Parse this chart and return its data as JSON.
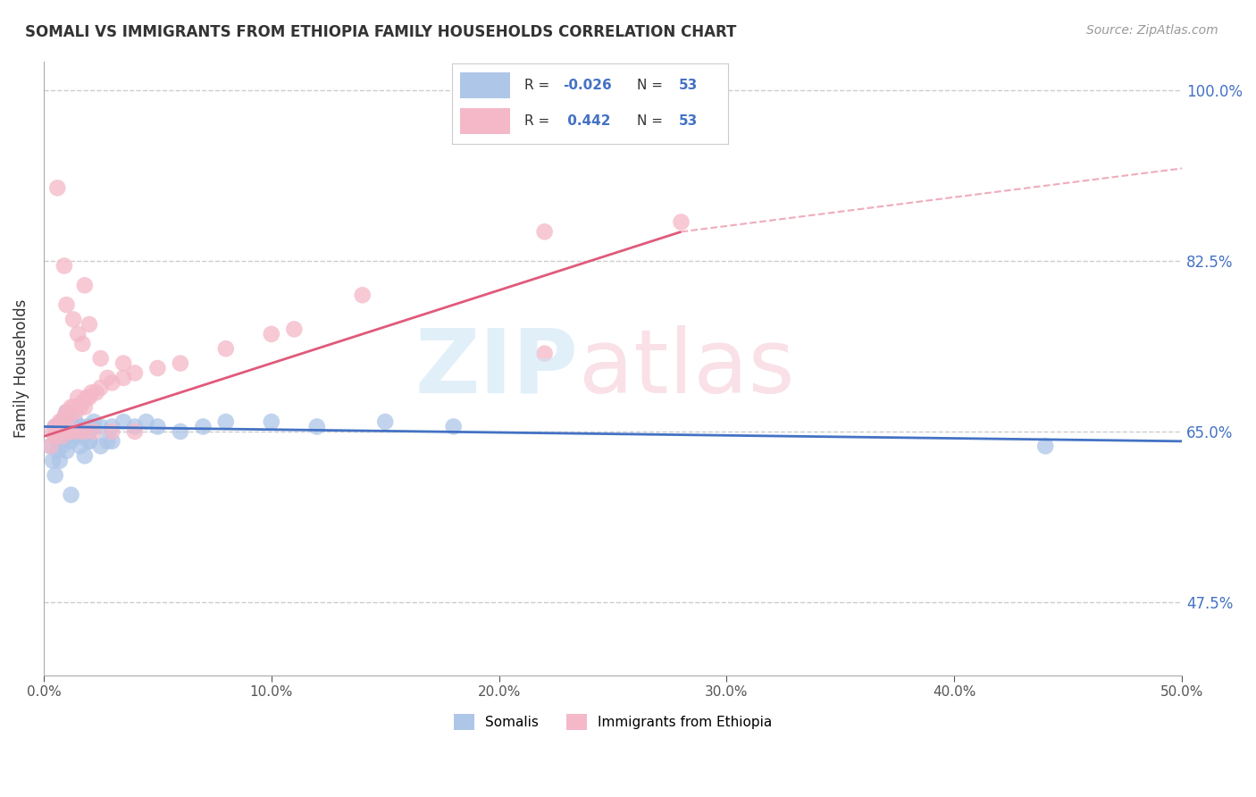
{
  "title": "SOMALI VS IMMIGRANTS FROM ETHIOPIA FAMILY HOUSEHOLDS CORRELATION CHART",
  "source": "Source: ZipAtlas.com",
  "ylabel": "Family Households",
  "ytick_values": [
    47.5,
    65.0,
    82.5,
    100.0
  ],
  "xmin": 0.0,
  "xmax": 50.0,
  "ymin": 40.0,
  "ymax": 103.0,
  "background_color": "#ffffff",
  "grid_color": "#cccccc",
  "somali_dot_color": "#aec6e8",
  "ethiopia_dot_color": "#f4b8c8",
  "somali_line_color": "#4472c4",
  "ethiopia_line_color": "#e05a7a",
  "somali_R": -0.026,
  "ethiopia_R": 0.442,
  "N": 53,
  "somali_x": [
    0.3,
    0.4,
    0.5,
    0.5,
    0.6,
    0.7,
    0.8,
    0.8,
    0.9,
    1.0,
    1.0,
    1.1,
    1.1,
    1.2,
    1.2,
    1.3,
    1.4,
    1.4,
    1.5,
    1.5,
    1.6,
    1.7,
    1.8,
    1.9,
    2.0,
    2.0,
    2.1,
    2.2,
    2.5,
    2.8,
    3.0,
    3.5,
    4.0,
    4.5,
    5.0,
    6.0,
    7.0,
    8.0,
    10.0,
    12.0,
    15.0,
    18.0,
    0.5,
    0.7,
    1.0,
    1.3,
    1.6,
    2.0,
    2.5,
    3.0,
    44.0,
    1.2,
    1.8
  ],
  "somali_y": [
    63.5,
    62.0,
    64.5,
    65.5,
    63.0,
    64.0,
    66.0,
    63.5,
    65.0,
    64.5,
    67.0,
    65.5,
    66.5,
    65.0,
    64.0,
    65.5,
    66.0,
    64.5,
    65.5,
    65.0,
    65.5,
    64.5,
    65.0,
    65.5,
    65.0,
    64.0,
    65.5,
    66.0,
    65.5,
    64.0,
    65.5,
    66.0,
    65.5,
    66.0,
    65.5,
    65.0,
    65.5,
    66.0,
    66.0,
    65.5,
    66.0,
    65.5,
    60.5,
    62.0,
    63.0,
    64.5,
    63.5,
    64.0,
    63.5,
    64.0,
    63.5,
    58.5,
    62.5
  ],
  "ethiopia_x": [
    0.3,
    0.4,
    0.5,
    0.6,
    0.7,
    0.8,
    0.9,
    1.0,
    1.1,
    1.2,
    1.3,
    1.4,
    1.5,
    1.6,
    1.7,
    1.8,
    1.9,
    2.0,
    2.1,
    2.3,
    2.5,
    2.8,
    3.0,
    3.5,
    4.0,
    5.0,
    6.0,
    8.0,
    10.0,
    11.0,
    14.0,
    22.0,
    28.0,
    0.5,
    0.8,
    1.0,
    1.2,
    1.5,
    1.8,
    2.2,
    3.0,
    4.0,
    1.5,
    2.0,
    1.0,
    1.8,
    0.6,
    0.9,
    1.3,
    1.7,
    2.5,
    3.5,
    22.0
  ],
  "ethiopia_y": [
    63.5,
    65.0,
    65.5,
    65.5,
    66.0,
    65.5,
    66.5,
    67.0,
    66.5,
    67.5,
    67.5,
    67.0,
    68.5,
    67.5,
    68.0,
    67.5,
    68.5,
    68.5,
    69.0,
    69.0,
    69.5,
    70.5,
    70.0,
    70.5,
    71.0,
    71.5,
    72.0,
    73.5,
    75.0,
    75.5,
    79.0,
    85.5,
    86.5,
    64.5,
    64.5,
    65.0,
    65.0,
    65.0,
    65.0,
    65.0,
    65.0,
    65.0,
    75.0,
    76.0,
    78.0,
    80.0,
    90.0,
    82.0,
    76.5,
    74.0,
    72.5,
    72.0,
    73.0
  ],
  "somali_line_x0": 0.0,
  "somali_line_y0": 65.5,
  "somali_line_x1": 50.0,
  "somali_line_y1": 64.0,
  "ethiopia_line_x0": 0.0,
  "ethiopia_line_y0": 64.5,
  "ethiopia_line_x1": 28.0,
  "ethiopia_line_y1": 85.5,
  "ethiopia_dash_x0": 28.0,
  "ethiopia_dash_y0": 85.5,
  "ethiopia_dash_x1": 50.0,
  "ethiopia_dash_y1": 92.0
}
